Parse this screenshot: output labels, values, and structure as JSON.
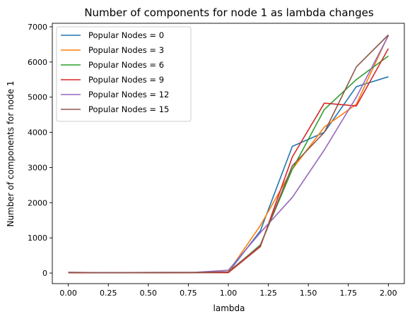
{
  "chart_data": {
    "type": "line",
    "title": "Number of components for node 1 as lambda changes",
    "xlabel": "lambda",
    "ylabel": "Number of components for node 1",
    "xlim": [
      -0.1,
      2.1
    ],
    "ylim": [
      -300,
      7100
    ],
    "xticks": [
      0.0,
      0.25,
      0.5,
      0.75,
      1.0,
      1.25,
      1.5,
      1.75,
      2.0
    ],
    "xtick_labels": [
      "0.00",
      "0.25",
      "0.50",
      "0.75",
      "1.00",
      "1.25",
      "1.50",
      "1.75",
      "2.00"
    ],
    "yticks": [
      0,
      1000,
      2000,
      3000,
      4000,
      5000,
      6000,
      7000
    ],
    "ytick_labels": [
      "0",
      "1000",
      "2000",
      "3000",
      "4000",
      "5000",
      "6000",
      "7000"
    ],
    "grid": false,
    "legend_position": "top-left",
    "x": [
      0.0,
      0.2,
      0.4,
      0.6,
      0.8,
      1.0,
      1.2,
      1.4,
      1.6,
      1.8,
      2.0
    ],
    "series": [
      {
        "name": "Popular Nodes = 0",
        "color": "#1f77b4",
        "values": [
          15,
          8,
          10,
          12,
          14,
          20,
          1200,
          3600,
          4000,
          5300,
          5580
        ]
      },
      {
        "name": "Popular Nodes = 3",
        "color": "#ff7f0e",
        "values": [
          10,
          7,
          9,
          11,
          13,
          30,
          1350,
          2950,
          4150,
          4800,
          6770
        ]
      },
      {
        "name": "Popular Nodes = 6",
        "color": "#2ca02c",
        "values": [
          12,
          9,
          10,
          12,
          14,
          15,
          800,
          2950,
          4650,
          5500,
          6170
        ]
      },
      {
        "name": "Popular Nodes = 9",
        "color": "#d62728",
        "values": [
          8,
          6,
          8,
          9,
          11,
          10,
          750,
          3300,
          4830,
          4750,
          6380
        ]
      },
      {
        "name": "Popular Nodes = 12",
        "color": "#9467bd",
        "values": [
          20,
          12,
          15,
          18,
          22,
          80,
          1150,
          2150,
          3500,
          5000,
          6750
        ]
      },
      {
        "name": "Popular Nodes = 15",
        "color": "#8c564b",
        "values": [
          18,
          10,
          12,
          14,
          16,
          35,
          780,
          3050,
          4000,
          5860,
          6770
        ]
      }
    ]
  }
}
